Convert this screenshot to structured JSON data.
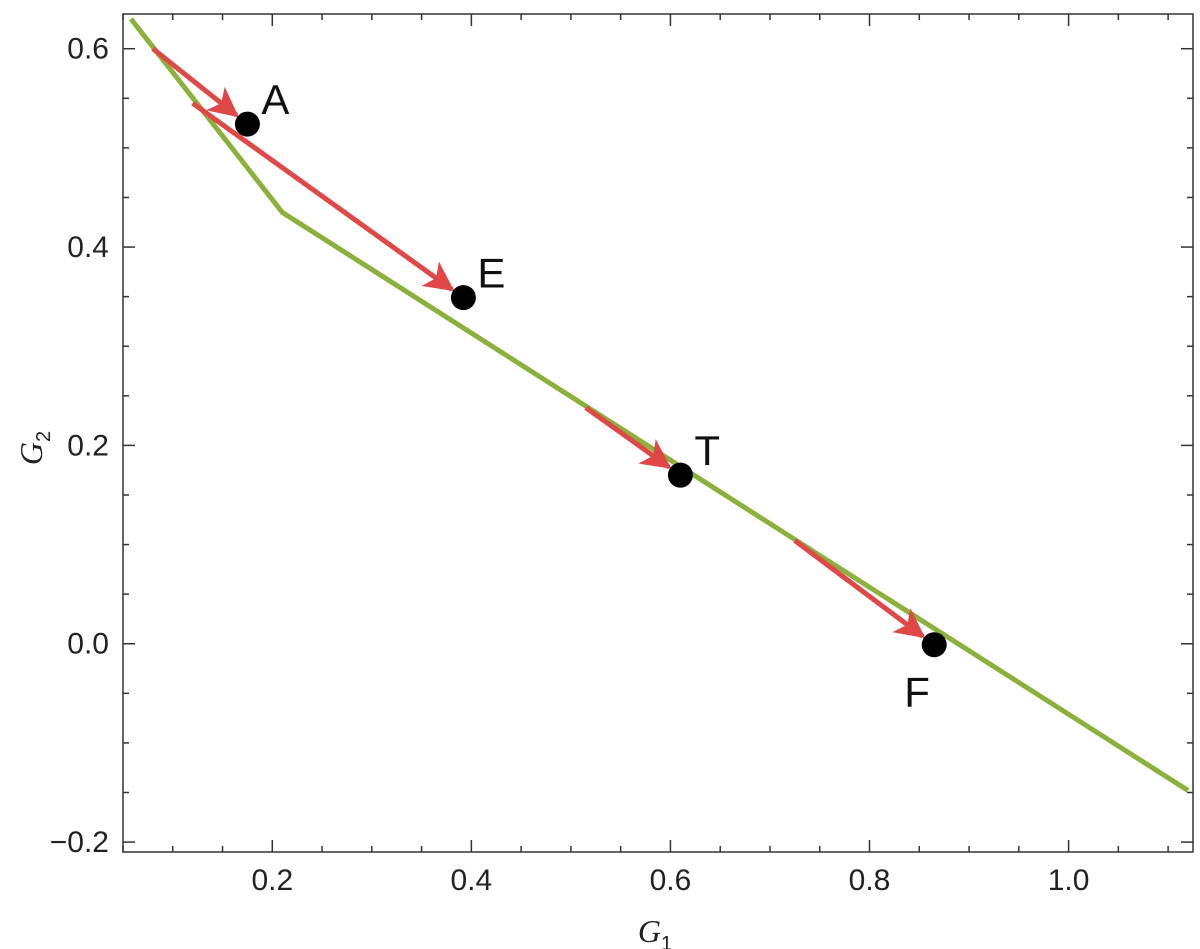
{
  "chart_data": {
    "type": "line",
    "title": "",
    "xlabel": {
      "main": "G",
      "sub": "1"
    },
    "ylabel": {
      "main": "G",
      "sub": "2"
    },
    "xlim": [
      0.05,
      1.125
    ],
    "ylim": [
      -0.21,
      0.635
    ],
    "x_ticks": [
      {
        "value": 0.2,
        "label": "0.2"
      },
      {
        "value": 0.4,
        "label": "0.4"
      },
      {
        "value": 0.6,
        "label": "0.6"
      },
      {
        "value": 0.8,
        "label": "0.8"
      },
      {
        "value": 1.0,
        "label": "1.0"
      }
    ],
    "y_ticks": [
      {
        "value": -0.2,
        "label": "−0.2"
      },
      {
        "value": 0.0,
        "label": "0.0"
      },
      {
        "value": 0.2,
        "label": "0.2"
      },
      {
        "value": 0.4,
        "label": "0.4"
      },
      {
        "value": 0.6,
        "label": "0.6"
      }
    ],
    "x_minor_step": 0.05,
    "y_minor_step": 0.05,
    "boundary_line": {
      "color": "#8cb03c",
      "points": [
        [
          0.058,
          0.63
        ],
        [
          0.21,
          0.435
        ],
        [
          1.12,
          -0.148
        ]
      ]
    },
    "arrows": [
      {
        "from": [
          0.08,
          0.6
        ],
        "to": [
          0.175,
          0.524
        ]
      },
      {
        "from": [
          0.12,
          0.545
        ],
        "to": [
          0.392,
          0.349
        ]
      },
      {
        "from": [
          0.515,
          0.238
        ],
        "to": [
          0.61,
          0.17
        ]
      },
      {
        "from": [
          0.725,
          0.104
        ],
        "to": [
          0.865,
          -0.001
        ]
      }
    ],
    "arrow_color": "#e04848",
    "points": [
      {
        "label": "A",
        "x": 0.175,
        "y": 0.524,
        "label_pos": "above-right"
      },
      {
        "label": "E",
        "x": 0.392,
        "y": 0.349,
        "label_pos": "above-right"
      },
      {
        "label": "T",
        "x": 0.61,
        "y": 0.17,
        "label_pos": "above-right"
      },
      {
        "label": "F",
        "x": 0.865,
        "y": -0.001,
        "label_pos": "below-left"
      }
    ],
    "point_color": "#000000",
    "grid": false,
    "frame": true
  }
}
